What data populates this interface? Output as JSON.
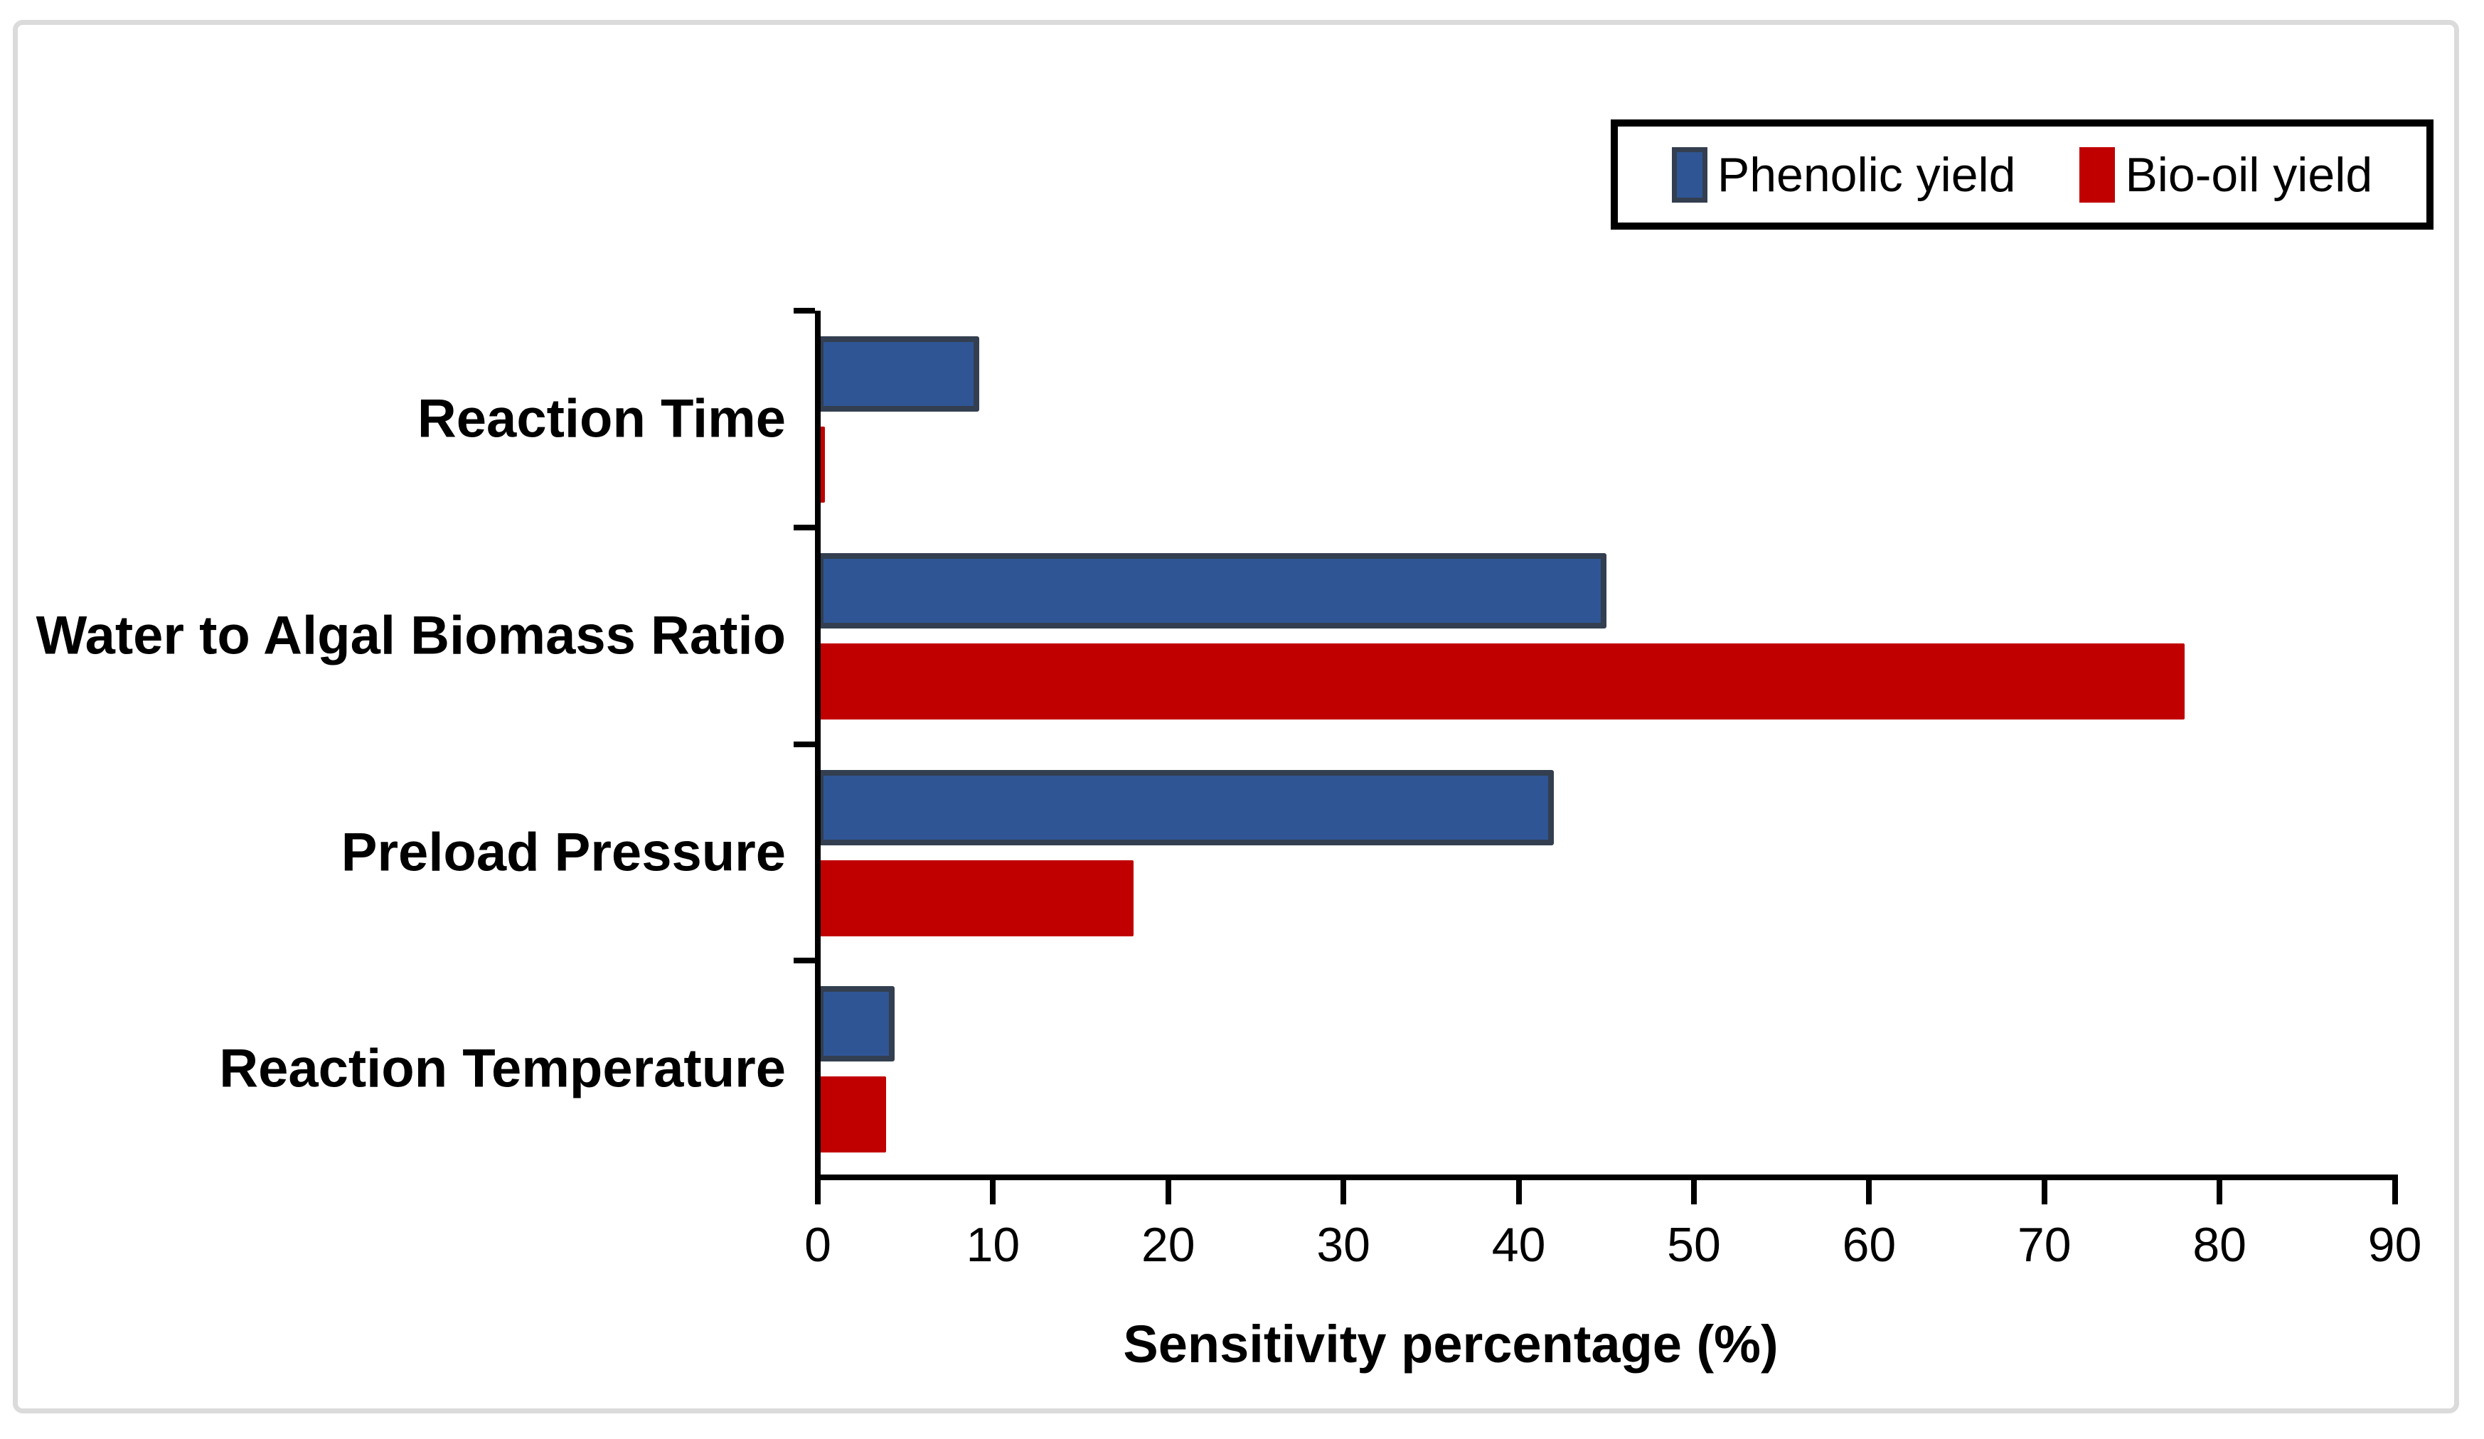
{
  "chart_data": {
    "type": "bar",
    "orientation": "horizontal",
    "title": "",
    "xlabel": "Sensitivity percentage (%)",
    "ylabel": "",
    "categories": [
      "Reaction Time",
      "Water to Algal Biomass Ratio",
      "Preload Pressure",
      "Reaction Temperature"
    ],
    "series": [
      {
        "name": "Phenolic yield",
        "color": "#2F5594",
        "border_color": "#333F50",
        "values": [
          9.2,
          45.0,
          42.0,
          4.4
        ]
      },
      {
        "name": "Bio-oil yield",
        "color": "#C00000",
        "border_color": "#C00000",
        "values": [
          0.4,
          78.0,
          18.0,
          3.9
        ]
      }
    ],
    "xlim": [
      0,
      90
    ],
    "x_ticks": [
      0,
      10,
      20,
      30,
      40,
      50,
      60,
      70,
      80,
      90
    ],
    "grid": false,
    "legend_position": "top-right",
    "axis_color": "#000000",
    "figure_border_color": "#DBDBDB"
  }
}
